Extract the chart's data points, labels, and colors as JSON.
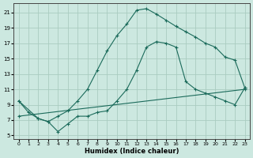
{
  "background_color": "#cce8e0",
  "grid_color": "#aaccc0",
  "line_color": "#1a6a5a",
  "xlim": [
    -0.5,
    23.5
  ],
  "ylim": [
    4.5,
    22.2
  ],
  "xticks": [
    0,
    1,
    2,
    3,
    4,
    5,
    6,
    7,
    8,
    9,
    10,
    11,
    12,
    13,
    14,
    15,
    16,
    17,
    18,
    19,
    20,
    21,
    22,
    23
  ],
  "yticks": [
    5,
    7,
    9,
    11,
    13,
    15,
    17,
    19,
    21
  ],
  "xlabel": "Humidex (Indice chaleur)",
  "line1_x": [
    0,
    1,
    2,
    3,
    4,
    5,
    6,
    7,
    8,
    9,
    10,
    11,
    12,
    13,
    14,
    15,
    16,
    17,
    18,
    19,
    20,
    21,
    22,
    23
  ],
  "line1_y": [
    9.5,
    8.0,
    7.2,
    6.8,
    7.5,
    8.2,
    9.5,
    11.0,
    13.5,
    16.0,
    18.0,
    19.5,
    21.3,
    21.5,
    20.8,
    20.0,
    19.2,
    18.5,
    17.8,
    17.0,
    16.5,
    15.2,
    14.8,
    11.2
  ],
  "line2_x": [
    0,
    2,
    3,
    4,
    5,
    6,
    7,
    8,
    9,
    10,
    11,
    12,
    13,
    14,
    15,
    16,
    17,
    18,
    19,
    20,
    21,
    22,
    23
  ],
  "line2_y": [
    9.5,
    7.2,
    6.8,
    5.5,
    6.5,
    7.5,
    7.5,
    8.0,
    8.2,
    9.5,
    11.0,
    13.5,
    16.5,
    17.2,
    17.0,
    16.5,
    12.0,
    11.0,
    10.5,
    10.0,
    9.5,
    9.0,
    11.2
  ],
  "line3_x": [
    0,
    23
  ],
  "line3_y": [
    7.5,
    11.0
  ]
}
